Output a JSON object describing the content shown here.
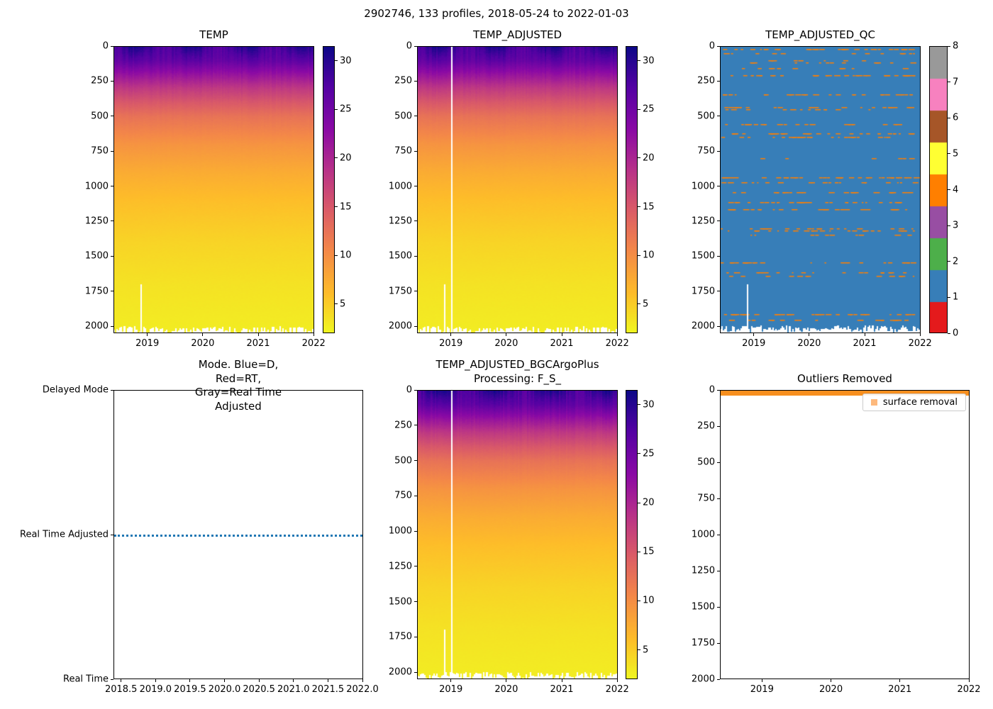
{
  "figure": {
    "title": "2902746, 133 profiles, 2018-05-24 to 2022-01-03",
    "platform_id": "2902746",
    "n_profiles": 133,
    "date_start": "2018-05-24",
    "date_end": "2022-01-03",
    "background": "#ffffff"
  },
  "colormap": {
    "name": "plasma (reversed: warm=dark purple, cold=yellow)",
    "stops": [
      [
        0.0,
        "#0d0887"
      ],
      [
        0.14,
        "#5402a3"
      ],
      [
        0.29,
        "#8b0aa5"
      ],
      [
        0.43,
        "#b83289"
      ],
      [
        0.57,
        "#db5c68"
      ],
      [
        0.71,
        "#f48849"
      ],
      [
        0.86,
        "#febd2a"
      ],
      [
        1.0,
        "#f0f921"
      ]
    ]
  },
  "chart_data": [
    {
      "type": "heatmap",
      "title": "TEMP",
      "x_range": [
        2018.39,
        2022.01
      ],
      "x_ticks": [
        "2019",
        "2020",
        "2021",
        "2022"
      ],
      "y_range": [
        0,
        2050
      ],
      "y_ticks": [
        "0",
        "250",
        "500",
        "750",
        "1000",
        "1250",
        "1500",
        "1750",
        "2000"
      ],
      "colorbar": {
        "vmin": 2,
        "vmax": 31.5,
        "ticks": [
          "5",
          "10",
          "15",
          "20",
          "25",
          "30"
        ]
      },
      "profile_depths": [
        0,
        100,
        200,
        300,
        400,
        500,
        700,
        900,
        1100,
        1400,
        1700,
        2050
      ],
      "profile_temps": [
        29,
        26.5,
        22,
        18,
        15,
        12.5,
        9.5,
        7.5,
        6,
        4.5,
        3.5,
        2.8
      ],
      "missing_profile_gap_x": 2018.87
    },
    {
      "type": "heatmap",
      "title": "TEMP_ADJUSTED",
      "x_range": [
        2018.39,
        2022.01
      ],
      "x_ticks": [
        "2019",
        "2020",
        "2021",
        "2022"
      ],
      "y_range": [
        0,
        2050
      ],
      "y_ticks": [
        "0",
        "250",
        "500",
        "750",
        "1000",
        "1250",
        "1500",
        "1750",
        "2000"
      ],
      "colorbar": {
        "vmin": 2,
        "vmax": 31.5,
        "ticks": [
          "5",
          "10",
          "15",
          "20",
          "25",
          "30"
        ]
      },
      "profile_depths": [
        0,
        100,
        200,
        300,
        400,
        500,
        700,
        900,
        1100,
        1400,
        1700,
        2050
      ],
      "profile_temps": [
        29,
        26.5,
        22,
        18,
        15,
        12.5,
        9.5,
        7.5,
        6,
        4.5,
        3.5,
        2.8
      ],
      "missing_profile_gap_x": 2018.87,
      "full_gap_x": 2019.0
    },
    {
      "type": "heatmap",
      "title": "TEMP_ADJUSTED_QC",
      "x_range": [
        2018.39,
        2022.01
      ],
      "x_ticks": [
        "2019",
        "2020",
        "2021",
        "2022"
      ],
      "y_range": [
        0,
        2050
      ],
      "y_ticks": [
        "0",
        "250",
        "500",
        "750",
        "1000",
        "1250",
        "1500",
        "1750",
        "2000"
      ],
      "qc_scale_values": [
        "0",
        "1",
        "2",
        "3",
        "4",
        "5",
        "6",
        "7",
        "8"
      ],
      "qc_colors": [
        "#e41a1c",
        "#377eb8",
        "#4daf4a",
        "#984ea3",
        "#ff7f00",
        "#ffff33",
        "#a65628",
        "#f781bf",
        "#999999"
      ],
      "dominant_qc": 1,
      "sparse_qc": 4,
      "missing_profile_gap_x": 2018.87
    },
    {
      "type": "line",
      "title": "Mode. Blue=D, Red=RT,\nGray=Real Time Adjusted",
      "x_range": [
        2018.39,
        2022.01
      ],
      "x_ticks": [
        "2018.5",
        "2019.0",
        "2019.5",
        "2020.0",
        "2020.5",
        "2021.0",
        "2021.5",
        "2022.0"
      ],
      "y_categories": [
        "Real Time",
        "Real Time Adjusted",
        "Delayed Mode"
      ],
      "series": [
        {
          "name": "mode",
          "constant_value": "Real Time Adjusted",
          "color": "#1f77b4",
          "linestyle": "dotted"
        }
      ]
    },
    {
      "type": "heatmap",
      "title": "TEMP_ADJUSTED_BGCArgoPlus\nProcessing: F_S_",
      "x_range": [
        2018.39,
        2022.01
      ],
      "x_ticks": [
        "2019",
        "2020",
        "2021",
        "2022"
      ],
      "y_range": [
        0,
        2050
      ],
      "y_ticks": [
        "0",
        "250",
        "500",
        "750",
        "1000",
        "1250",
        "1500",
        "1750",
        "2000"
      ],
      "colorbar": {
        "vmin": 2,
        "vmax": 31.5,
        "ticks": [
          "5",
          "10",
          "15",
          "20",
          "25",
          "30"
        ]
      },
      "profile_depths": [
        0,
        100,
        200,
        300,
        400,
        500,
        700,
        900,
        1100,
        1400,
        1700,
        2050
      ],
      "profile_temps": [
        29,
        26.5,
        22,
        18,
        15,
        12.5,
        9.5,
        7.5,
        6,
        4.5,
        3.5,
        2.8
      ],
      "missing_profile_gap_x": 2018.87,
      "full_gap_x": 2019.0
    },
    {
      "type": "scatter",
      "title": "Outliers Removed",
      "x_range": [
        2018.39,
        2022.01
      ],
      "x_ticks": [
        "2019",
        "2020",
        "2021",
        "2022"
      ],
      "y_range": [
        0,
        2000
      ],
      "y_ticks": [
        "0",
        "250",
        "500",
        "750",
        "1000",
        "1250",
        "1500",
        "1750",
        "2000"
      ],
      "legend": [
        {
          "label": "surface removal",
          "color": "#fdb97d"
        }
      ],
      "band": {
        "depth_top": 0,
        "depth_bottom": 35,
        "color": "#f78f1e"
      }
    }
  ]
}
